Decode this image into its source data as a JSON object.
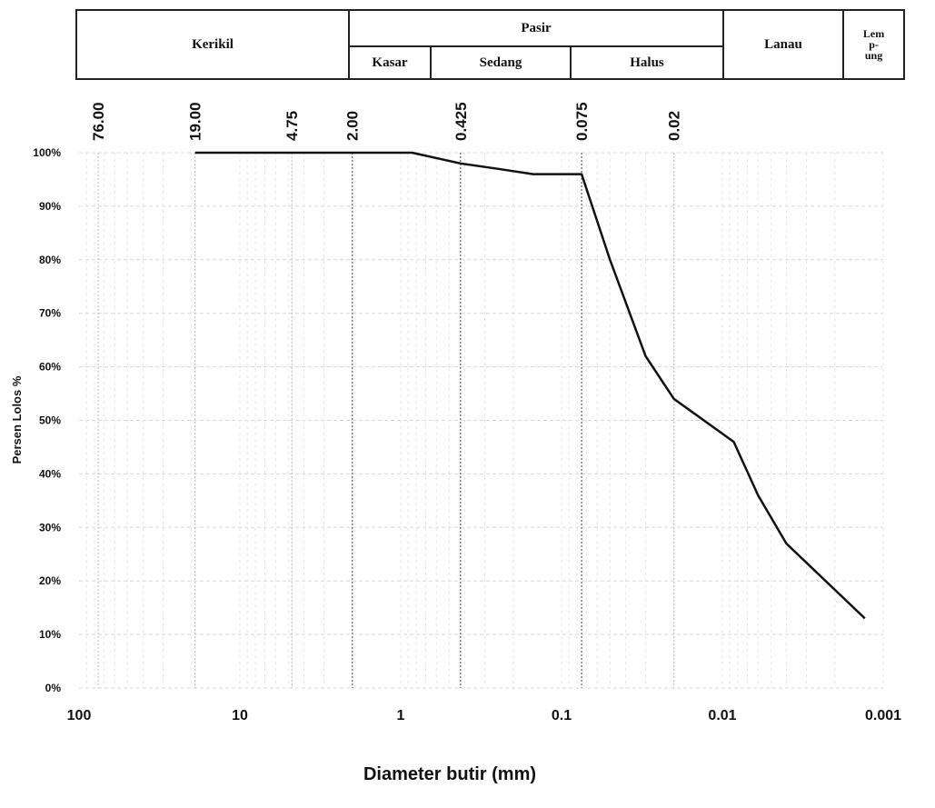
{
  "classification": {
    "kerikil": "Kerikil",
    "pasir": "Pasir",
    "kasar": "Kasar",
    "sedang": "Sedang",
    "halus": "Halus",
    "lanau": "Lanau",
    "lempung_lines": [
      "Lem",
      "p-",
      "ung"
    ]
  },
  "chart_data": {
    "type": "line",
    "xlabel": "Diameter butir (mm)",
    "ylabel": "Persen Lolos %",
    "x_scale": "log",
    "x_reversed": true,
    "xlim": [
      100,
      0.001
    ],
    "ylim": [
      0,
      100
    ],
    "x_ticks": [
      {
        "value": 100,
        "label": "100"
      },
      {
        "value": 10,
        "label": "10"
      },
      {
        "value": 1,
        "label": "1"
      },
      {
        "value": 0.1,
        "label": "0.1"
      },
      {
        "value": 0.01,
        "label": "0.01"
      },
      {
        "value": 0.001,
        "label": "0.001"
      }
    ],
    "y_ticks": [
      {
        "value": 0,
        "label": "0%"
      },
      {
        "value": 10,
        "label": "10%"
      },
      {
        "value": 20,
        "label": "20%"
      },
      {
        "value": 30,
        "label": "30%"
      },
      {
        "value": 40,
        "label": "40%"
      },
      {
        "value": 50,
        "label": "50%"
      },
      {
        "value": 60,
        "label": "60%"
      },
      {
        "value": 70,
        "label": "70%"
      },
      {
        "value": 80,
        "label": "80%"
      },
      {
        "value": 90,
        "label": "90%"
      },
      {
        "value": 100,
        "label": "100%"
      }
    ],
    "sieve_sizes": [
      {
        "value": 76.0,
        "label": "76.00"
      },
      {
        "value": 19.0,
        "label": "19.00"
      },
      {
        "value": 4.75,
        "label": "4.75"
      },
      {
        "value": 2.0,
        "label": "2.00"
      },
      {
        "value": 0.425,
        "label": "0.425"
      },
      {
        "value": 0.075,
        "label": "0.075"
      },
      {
        "value": 0.02,
        "label": "0.02"
      }
    ],
    "grid": true,
    "series": [
      {
        "x": [
          19,
          2,
          0.85,
          0.425,
          0.25,
          0.15,
          0.075,
          0.05,
          0.03,
          0.02,
          0.0085,
          0.006,
          0.004,
          0.0013
        ],
        "y": [
          100,
          100,
          100,
          98,
          97,
          96,
          96,
          80,
          62,
          54,
          46,
          36,
          27,
          13
        ]
      }
    ]
  }
}
